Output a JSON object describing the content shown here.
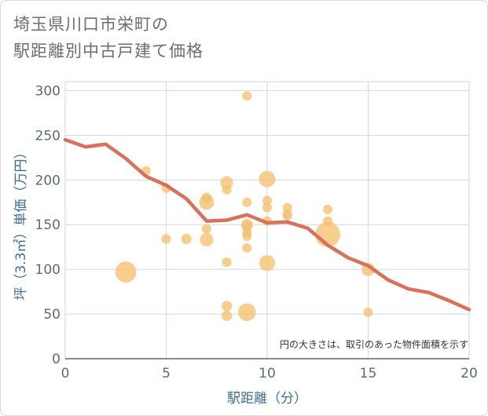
{
  "page": {
    "title_line1": "埼玉県川口市栄町の",
    "title_line2": "駅距離別中古戸建て価格"
  },
  "chart_data": {
    "type": "scatter",
    "title": "埼玉県川口市栄町の駅距離別中古戸建て価格",
    "xlabel": "駅距離（分）",
    "ylabel": "坪（3.3㎡）単価（万円）",
    "xlim": [
      0,
      20
    ],
    "ylim": [
      0,
      310
    ],
    "xticks": [
      0,
      5,
      10,
      15,
      20
    ],
    "yticks": [
      0,
      50,
      100,
      150,
      200,
      250,
      300
    ],
    "grid": true,
    "note": "円の大きさは、取引のあった物件面積を示す",
    "colors": {
      "bubble": "#f5c06e",
      "line": "#d9705a",
      "axis_text": "#3f6e93"
    },
    "series": [
      {
        "type": "bubble",
        "points": [
          {
            "x": 3,
            "y": 97,
            "size": 5
          },
          {
            "x": 4,
            "y": 210,
            "size": 1
          },
          {
            "x": 5,
            "y": 134,
            "size": 1
          },
          {
            "x": 5,
            "y": 191,
            "size": 1
          },
          {
            "x": 6,
            "y": 134,
            "size": 1.2
          },
          {
            "x": 7,
            "y": 133,
            "size": 2
          },
          {
            "x": 7,
            "y": 145,
            "size": 1
          },
          {
            "x": 7,
            "y": 175,
            "size": 2.5
          },
          {
            "x": 7,
            "y": 180,
            "size": 1.2
          },
          {
            "x": 8,
            "y": 48,
            "size": 1.2
          },
          {
            "x": 8,
            "y": 59,
            "size": 1.2
          },
          {
            "x": 8,
            "y": 108,
            "size": 1
          },
          {
            "x": 8,
            "y": 189,
            "size": 1
          },
          {
            "x": 8,
            "y": 197,
            "size": 1.8
          },
          {
            "x": 9,
            "y": 52,
            "size": 3.5
          },
          {
            "x": 9,
            "y": 124,
            "size": 1
          },
          {
            "x": 9,
            "y": 137,
            "size": 1
          },
          {
            "x": 9,
            "y": 141,
            "size": 1
          },
          {
            "x": 9,
            "y": 148,
            "size": 1.2
          },
          {
            "x": 9,
            "y": 150,
            "size": 1.5
          },
          {
            "x": 9,
            "y": 175,
            "size": 1
          },
          {
            "x": 9,
            "y": 294,
            "size": 1
          },
          {
            "x": 10,
            "y": 107,
            "size": 2.8
          },
          {
            "x": 10,
            "y": 154,
            "size": 1
          },
          {
            "x": 10,
            "y": 169,
            "size": 1
          },
          {
            "x": 10,
            "y": 177,
            "size": 1
          },
          {
            "x": 10,
            "y": 201,
            "size": 3
          },
          {
            "x": 11,
            "y": 160,
            "size": 1
          },
          {
            "x": 11,
            "y": 162,
            "size": 1
          },
          {
            "x": 11,
            "y": 169,
            "size": 1
          },
          {
            "x": 13,
            "y": 139,
            "size": 7
          },
          {
            "x": 13,
            "y": 154,
            "size": 1
          },
          {
            "x": 13,
            "y": 167,
            "size": 1
          },
          {
            "x": 15,
            "y": 52,
            "size": 1
          },
          {
            "x": 15,
            "y": 100,
            "size": 2
          }
        ]
      },
      {
        "type": "line",
        "x": [
          0,
          1,
          2,
          3,
          4,
          5,
          6,
          7,
          8,
          9,
          10,
          11,
          12,
          13,
          14,
          15,
          16,
          17,
          18,
          19,
          20
        ],
        "y": [
          245,
          237,
          240,
          224,
          204,
          194,
          179,
          154,
          155,
          161,
          152,
          153,
          146,
          127,
          113,
          104,
          88,
          78,
          74,
          65,
          55
        ]
      }
    ]
  }
}
